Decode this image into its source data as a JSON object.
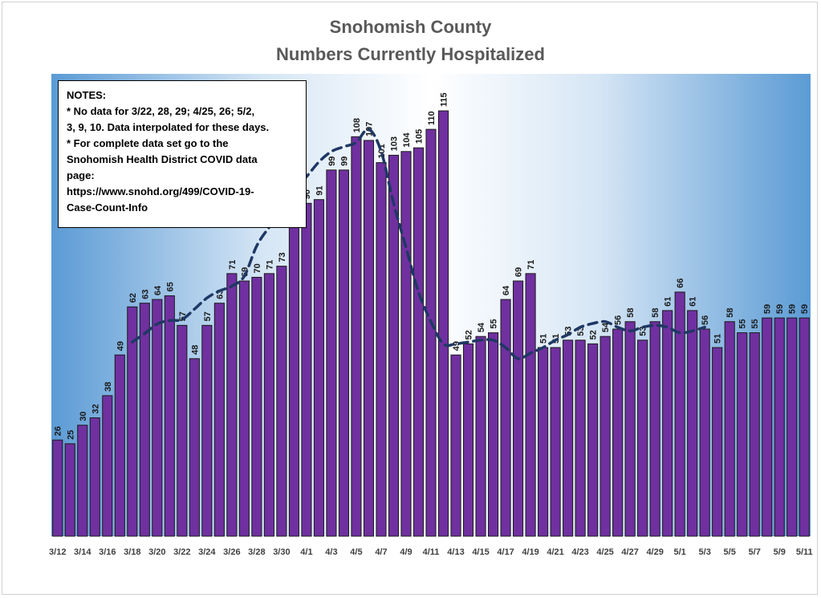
{
  "chart_data": {
    "type": "bar",
    "title": "Snohomish County",
    "subtitle": "Numbers Currently Hospitalized",
    "xlabel": "",
    "ylabel": "",
    "ylim": [
      0,
      125
    ],
    "grid": false,
    "legend": "none",
    "categories": [
      "3/12",
      "3/13",
      "3/14",
      "3/15",
      "3/16",
      "3/17",
      "3/18",
      "3/19",
      "3/20",
      "3/21",
      "3/22",
      "3/23",
      "3/24",
      "3/25",
      "3/26",
      "3/27",
      "3/28",
      "3/29",
      "3/30",
      "3/31",
      "4/1",
      "4/2",
      "4/3",
      "4/4",
      "4/5",
      "4/6",
      "4/7",
      "4/8",
      "4/9",
      "4/10",
      "4/11",
      "4/12",
      "4/13",
      "4/14",
      "4/15",
      "4/16",
      "4/17",
      "4/18",
      "4/19",
      "4/20",
      "4/21",
      "4/22",
      "4/23",
      "4/24",
      "4/25",
      "4/26",
      "4/27",
      "4/28",
      "4/29",
      "4/30",
      "5/1",
      "5/2",
      "5/3",
      "5/4",
      "5/5",
      "5/6",
      "5/7",
      "5/8",
      "5/9",
      "5/10",
      "5/11"
    ],
    "tick_labels": [
      "3/12",
      "",
      "3/14",
      "",
      "3/16",
      "",
      "3/18",
      "",
      "3/20",
      "",
      "3/22",
      "",
      "3/24",
      "",
      "3/26",
      "",
      "3/28",
      "",
      "3/30",
      "",
      "4/1",
      "",
      "4/3",
      "",
      "4/5",
      "",
      "4/7",
      "",
      "4/9",
      "",
      "4/11",
      "",
      "4/13",
      "",
      "4/15",
      "",
      "4/17",
      "",
      "4/19",
      "",
      "4/21",
      "",
      "4/23",
      "",
      "4/25",
      "",
      "4/27",
      "",
      "4/29",
      "",
      "5/1",
      "",
      "5/3",
      "",
      "5/5",
      "",
      "5/7",
      "",
      "5/9",
      "",
      "5/11"
    ],
    "values": [
      26,
      25,
      30,
      32,
      38,
      49,
      62,
      63,
      64,
      65,
      57,
      48,
      57,
      63,
      71,
      69,
      70,
      71,
      73,
      87,
      90,
      91,
      99,
      99,
      108,
      107,
      101,
      103,
      104,
      105,
      110,
      115,
      49,
      52,
      54,
      55,
      64,
      69,
      71,
      51,
      51,
      53,
      53,
      52,
      54,
      56,
      58,
      53,
      58,
      61,
      66,
      61,
      56,
      51,
      58,
      55,
      55,
      59,
      59,
      59,
      59
    ],
    "data_labels": [
      "26",
      "25",
      "30",
      "32",
      "38",
      "49",
      "62",
      "63",
      "64",
      "65",
      "57",
      "48",
      "57",
      "63",
      "71",
      "69",
      "70",
      "71",
      "73",
      "87",
      "90",
      "91",
      "99",
      "99",
      "108",
      "107",
      "101",
      "103",
      "104",
      "105",
      "110",
      "115",
      "49",
      "52",
      "54",
      "55",
      "64",
      "69",
      "71",
      "51",
      "51",
      "53",
      "53",
      "52",
      "54",
      "56",
      "58",
      "53",
      "58",
      "61",
      "66",
      "61",
      "56",
      "51",
      "58",
      "55",
      "55",
      "59",
      "59",
      "59",
      "59"
    ],
    "trendline": {
      "type": "moving-average",
      "style": "dashed",
      "color": "#1f3864",
      "start_category": "3/18",
      "values": [
        52.5,
        54.8,
        57.4,
        58.3,
        58.6,
        61.4,
        64.4,
        66.3,
        67.6,
        70.3,
        78.5,
        83.5,
        87.6,
        93.5,
        97.2,
        101.2,
        104.0,
        105.3,
        106.5,
        110.0,
        104.0,
        90.0,
        78.0,
        66.0,
        58.0,
        52.0,
        52.0,
        52.5,
        53.0,
        53.0,
        51.0,
        48.0,
        49.5,
        51.0,
        53.0,
        54.5,
        56.5,
        57.5,
        58.0,
        56.5,
        55.5,
        56.5,
        57.0,
        56.5,
        55.0,
        55.5,
        56.5
      ]
    },
    "colors": {
      "bar_fill": "#7030a0",
      "bar_stroke": "#1a1a1a",
      "plot_edge": "#5b9bd5",
      "plot_center": "#ffffff"
    }
  },
  "notes": {
    "lines": [
      "NOTES:",
      "* No data for 3/22, 28, 29; 4/25, 26; 5/2,",
      "3, 9, 10. Data interpolated for these days.",
      "* For complete data set go to the",
      "Snohomish Health District COVID data",
      "page:",
      "https://www.snohd.org/499/COVID-19-",
      "Case-Count-Info"
    ]
  }
}
